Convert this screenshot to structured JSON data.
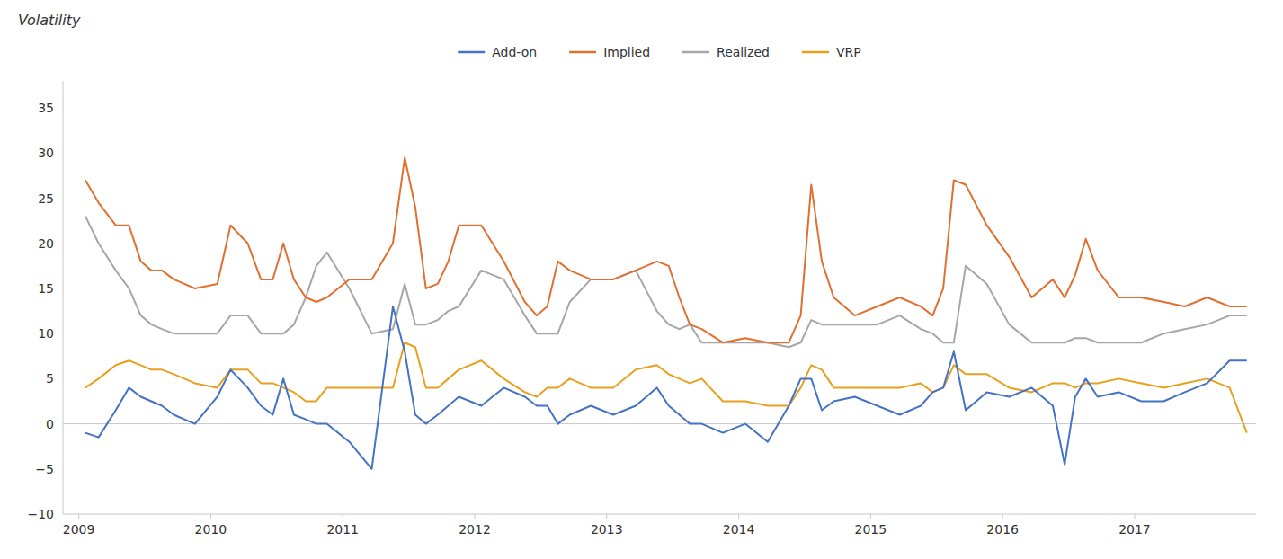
{
  "chart_data": {
    "type": "line",
    "title": "Volatility",
    "x": [
      2009.05,
      2009.15,
      2009.28,
      2009.38,
      2009.47,
      2009.55,
      2009.63,
      2009.72,
      2009.8,
      2009.88,
      2010.05,
      2010.15,
      2010.28,
      2010.38,
      2010.47,
      2010.55,
      2010.63,
      2010.72,
      2010.8,
      2010.88,
      2011.05,
      2011.22,
      2011.38,
      2011.47,
      2011.55,
      2011.63,
      2011.72,
      2011.8,
      2011.88,
      2012.05,
      2012.22,
      2012.38,
      2012.47,
      2012.55,
      2012.63,
      2012.72,
      2012.88,
      2013.05,
      2013.22,
      2013.38,
      2013.47,
      2013.55,
      2013.63,
      2013.72,
      2013.88,
      2014.05,
      2014.22,
      2014.38,
      2014.47,
      2014.55,
      2014.63,
      2014.72,
      2014.88,
      2015.05,
      2015.22,
      2015.38,
      2015.47,
      2015.55,
      2015.63,
      2015.72,
      2015.88,
      2016.05,
      2016.22,
      2016.38,
      2016.47,
      2016.55,
      2016.63,
      2016.72,
      2016.88,
      2017.05,
      2017.22,
      2017.38,
      2017.55,
      2017.72,
      2017.85
    ],
    "series": [
      {
        "name": "Add-on",
        "color": "#4472c4",
        "values": [
          -1.0,
          -1.5,
          1.5,
          4.0,
          3.0,
          2.5,
          2.0,
          1.0,
          0.5,
          0.0,
          3.0,
          6.0,
          4.0,
          2.0,
          1.0,
          5.0,
          1.0,
          0.5,
          0.0,
          0.0,
          -2.0,
          -5.0,
          13.0,
          8.0,
          1.0,
          0.0,
          1.0,
          2.0,
          3.0,
          2.0,
          4.0,
          3.0,
          2.0,
          2.0,
          0.0,
          1.0,
          2.0,
          1.0,
          2.0,
          4.0,
          2.0,
          1.0,
          0.0,
          0.0,
          -1.0,
          0.0,
          -2.0,
          2.0,
          5.0,
          5.0,
          1.5,
          2.5,
          3.0,
          2.0,
          1.0,
          2.0,
          3.5,
          4.0,
          8.0,
          1.5,
          3.5,
          3.0,
          4.0,
          2.0,
          -4.5,
          3.0,
          5.0,
          3.0,
          3.5,
          2.5,
          2.5,
          3.5,
          4.5,
          7.0,
          7.0
        ]
      },
      {
        "name": "Implied",
        "color": "#e07030",
        "values": [
          27.0,
          24.5,
          22.0,
          22.0,
          18.0,
          17.0,
          17.0,
          16.0,
          15.5,
          15.0,
          15.5,
          22.0,
          20.0,
          16.0,
          16.0,
          20.0,
          16.0,
          14.0,
          13.5,
          14.0,
          16.0,
          16.0,
          20.0,
          29.5,
          24.0,
          15.0,
          15.5,
          18.0,
          22.0,
          22.0,
          18.0,
          13.5,
          12.0,
          13.0,
          18.0,
          17.0,
          16.0,
          16.0,
          17.0,
          18.0,
          17.5,
          14.0,
          11.0,
          10.5,
          9.0,
          9.5,
          9.0,
          9.0,
          12.0,
          26.5,
          18.0,
          14.0,
          12.0,
          13.0,
          14.0,
          13.0,
          12.0,
          15.0,
          27.0,
          26.5,
          22.0,
          18.5,
          14.0,
          16.0,
          14.0,
          16.5,
          20.5,
          17.0,
          14.0,
          14.0,
          13.5,
          13.0,
          14.0,
          13.0,
          13.0
        ]
      },
      {
        "name": "Realized",
        "color": "#a6a6a6",
        "values": [
          23.0,
          20.0,
          17.0,
          15.0,
          12.0,
          11.0,
          10.5,
          10.0,
          10.0,
          10.0,
          10.0,
          12.0,
          12.0,
          10.0,
          10.0,
          10.0,
          11.0,
          14.0,
          17.5,
          19.0,
          15.0,
          10.0,
          10.5,
          15.5,
          11.0,
          11.0,
          11.5,
          12.5,
          13.0,
          17.0,
          16.0,
          12.0,
          10.0,
          10.0,
          10.0,
          13.5,
          16.0,
          16.0,
          17.0,
          12.5,
          11.0,
          10.5,
          11.0,
          9.0,
          9.0,
          9.0,
          9.0,
          8.5,
          9.0,
          11.5,
          11.0,
          11.0,
          11.0,
          11.0,
          12.0,
          10.5,
          10.0,
          9.0,
          9.0,
          17.5,
          15.5,
          11.0,
          9.0,
          9.0,
          9.0,
          9.5,
          9.5,
          9.0,
          9.0,
          9.0,
          10.0,
          10.5,
          11.0,
          12.0,
          12.0
        ]
      },
      {
        "name": "VRP",
        "color": "#e8a020",
        "values": [
          4.0,
          5.0,
          6.5,
          7.0,
          6.5,
          6.0,
          6.0,
          5.5,
          5.0,
          4.5,
          4.0,
          6.0,
          6.0,
          4.5,
          4.5,
          4.0,
          3.5,
          2.5,
          2.5,
          4.0,
          4.0,
          4.0,
          4.0,
          9.0,
          8.5,
          4.0,
          4.0,
          5.0,
          6.0,
          7.0,
          5.0,
          3.5,
          3.0,
          4.0,
          4.0,
          5.0,
          4.0,
          4.0,
          6.0,
          6.5,
          5.5,
          5.0,
          4.5,
          5.0,
          2.5,
          2.5,
          2.0,
          2.0,
          4.0,
          6.5,
          6.0,
          4.0,
          4.0,
          4.0,
          4.0,
          4.5,
          3.5,
          4.0,
          6.5,
          5.5,
          5.5,
          4.0,
          3.5,
          4.5,
          4.5,
          4.0,
          4.5,
          4.5,
          5.0,
          4.5,
          4.0,
          4.5,
          5.0,
          4.0,
          -1.0
        ]
      }
    ],
    "xlim": [
      2008.88,
      2017.92
    ],
    "xticks": [
      2009,
      2010,
      2011,
      2012,
      2013,
      2014,
      2015,
      2016,
      2017
    ],
    "ylim": [
      -10,
      38
    ],
    "yticks": [
      {
        "value": -10,
        "label": "−10"
      },
      {
        "value": -5,
        "label": "−5"
      },
      0,
      5,
      10,
      15,
      20,
      25,
      30,
      35
    ],
    "grid": false,
    "legend": "top"
  }
}
